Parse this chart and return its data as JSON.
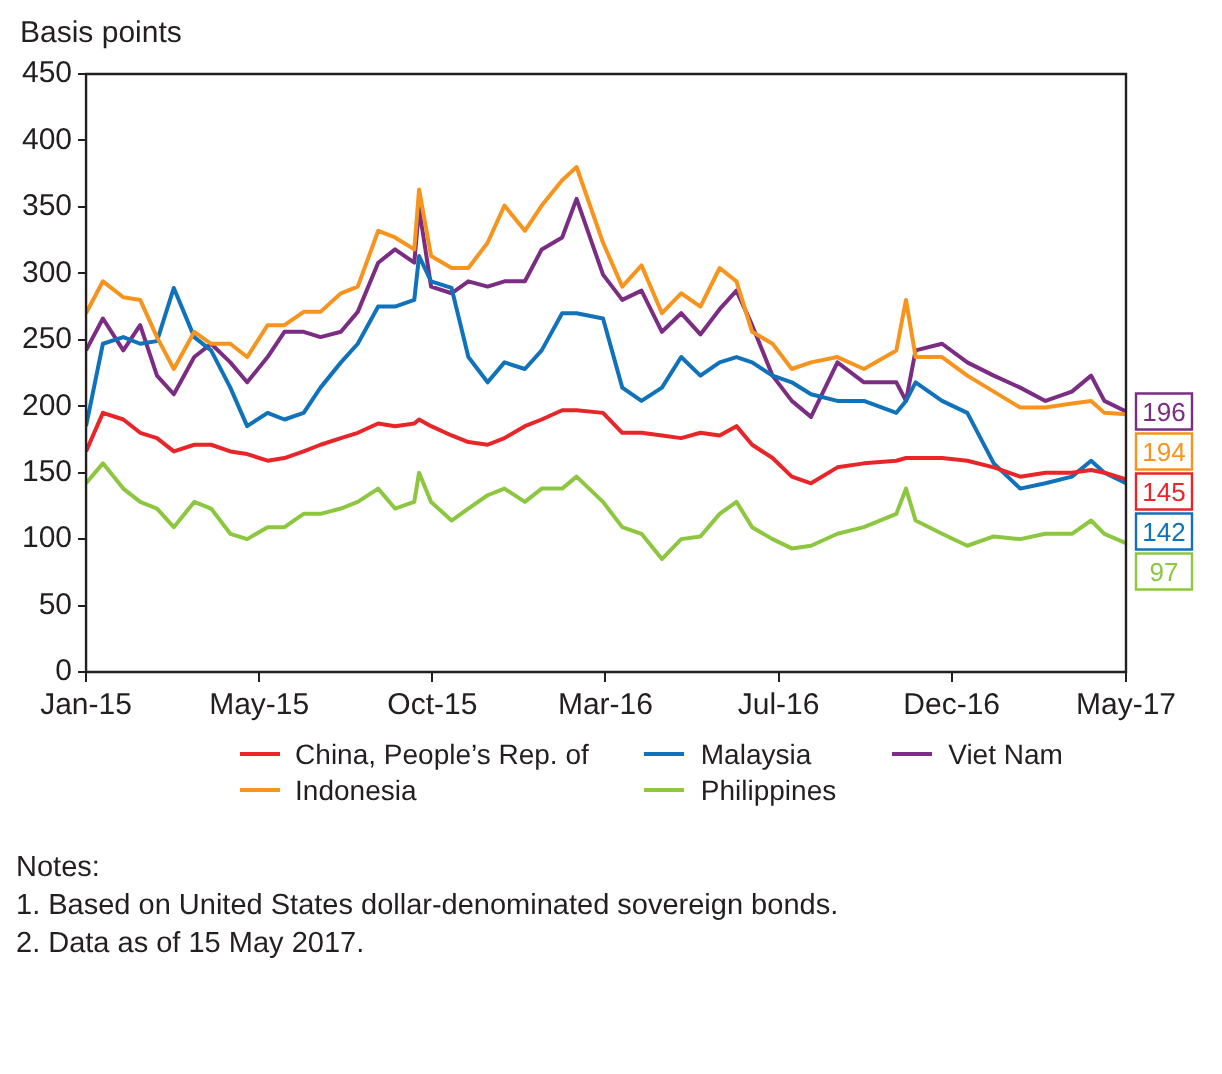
{
  "chart_data": {
    "type": "line",
    "ylabel": "Basis points",
    "x": [
      "2015-01-01",
      "2015-01-15",
      "2015-02-01",
      "2015-02-15",
      "2015-03-01",
      "2015-03-15",
      "2015-04-01",
      "2015-04-15",
      "2015-05-01",
      "2015-05-15",
      "2015-06-01",
      "2015-06-15",
      "2015-07-01",
      "2015-07-15",
      "2015-08-01",
      "2015-08-15",
      "2015-09-01",
      "2015-09-15",
      "2015-10-01",
      "2015-10-05",
      "2015-10-15",
      "2015-11-01",
      "2015-11-15",
      "2015-12-01",
      "2015-12-15",
      "2016-01-01",
      "2016-01-15",
      "2016-02-01",
      "2016-02-13",
      "2016-03-06",
      "2016-03-22",
      "2016-04-07",
      "2016-04-24",
      "2016-05-10",
      "2016-05-26",
      "2016-06-11",
      "2016-06-25",
      "2016-07-08",
      "2016-07-25",
      "2016-08-10",
      "2016-08-26",
      "2016-09-17",
      "2016-10-09",
      "2016-11-05",
      "2016-11-13",
      "2016-11-21",
      "2016-12-13",
      "2017-01-03",
      "2017-01-25",
      "2017-02-16",
      "2017-03-09",
      "2017-03-31",
      "2017-04-16",
      "2017-04-27",
      "2017-05-15"
    ],
    "series": [
      {
        "name": "China, People’s Rep. of",
        "color": "#e8262a",
        "values": [
          166,
          195,
          190,
          180,
          176,
          166,
          171,
          171,
          166,
          164,
          159,
          161,
          166,
          171,
          176,
          180,
          187,
          185,
          187,
          190,
          185,
          178,
          173,
          171,
          176,
          185,
          190,
          197,
          197,
          195,
          180,
          180,
          178,
          176,
          180,
          178,
          185,
          171,
          161,
          147,
          142,
          154,
          157,
          159,
          161,
          161,
          161,
          159,
          154,
          147,
          150,
          150,
          152,
          150,
          145
        ],
        "value_labels": [
          null,
          null,
          null,
          null,
          null,
          null,
          null,
          null,
          null,
          null,
          null,
          null,
          null,
          null,
          null,
          null,
          null,
          null,
          null,
          null,
          null,
          null,
          null,
          null,
          null,
          null,
          null,
          null,
          null,
          null,
          null,
          null,
          null,
          null,
          null,
          null,
          null,
          null,
          null,
          null,
          null,
          null,
          null,
          null,
          null,
          null,
          null,
          null,
          null,
          null,
          null,
          null,
          null,
          null,
          "145"
        ]
      },
      {
        "name": "Indonesia",
        "color": "#f7941d",
        "values": [
          270,
          294,
          282,
          280,
          252,
          228,
          256,
          247,
          247,
          237,
          261,
          261,
          271,
          271,
          285,
          290,
          332,
          327,
          318,
          363,
          313,
          304,
          304,
          323,
          351,
          332,
          351,
          370,
          380,
          323,
          290,
          306,
          270,
          285,
          275,
          304,
          294,
          256,
          247,
          228,
          233,
          237,
          228,
          242,
          280,
          237,
          237,
          223,
          211,
          199,
          199,
          202,
          204,
          195,
          194
        ],
        "value_labels": [
          null,
          null,
          null,
          null,
          null,
          null,
          null,
          null,
          null,
          null,
          null,
          null,
          null,
          null,
          null,
          null,
          null,
          null,
          null,
          null,
          null,
          null,
          null,
          null,
          null,
          null,
          null,
          null,
          null,
          null,
          null,
          null,
          null,
          null,
          null,
          null,
          null,
          null,
          null,
          null,
          null,
          null,
          null,
          null,
          null,
          null,
          null,
          null,
          null,
          null,
          null,
          null,
          null,
          null,
          "194"
        ]
      },
      {
        "name": "Malaysia",
        "color": "#0f72ba",
        "values": [
          185,
          247,
          252,
          247,
          249,
          289,
          252,
          242,
          214,
          185,
          195,
          190,
          195,
          214,
          233,
          247,
          275,
          275,
          280,
          313,
          294,
          289,
          237,
          218,
          233,
          228,
          242,
          270,
          270,
          266,
          214,
          204,
          214,
          237,
          223,
          233,
          237,
          233,
          223,
          218,
          209,
          204,
          204,
          195,
          204,
          218,
          204,
          195,
          157,
          138,
          142,
          147,
          159,
          150,
          142
        ],
        "value_labels": [
          null,
          null,
          null,
          null,
          null,
          null,
          null,
          null,
          null,
          null,
          null,
          null,
          null,
          null,
          null,
          null,
          null,
          null,
          null,
          null,
          null,
          null,
          null,
          null,
          null,
          null,
          null,
          null,
          null,
          null,
          null,
          null,
          null,
          null,
          null,
          null,
          null,
          null,
          null,
          null,
          null,
          null,
          null,
          null,
          null,
          null,
          null,
          null,
          null,
          null,
          null,
          null,
          null,
          null,
          "142"
        ]
      },
      {
        "name": "Philippines",
        "color": "#8dc63f",
        "values": [
          142,
          157,
          138,
          128,
          123,
          109,
          128,
          123,
          104,
          100,
          109,
          109,
          119,
          119,
          123,
          128,
          138,
          123,
          128,
          150,
          128,
          114,
          123,
          133,
          138,
          128,
          138,
          138,
          147,
          128,
          109,
          104,
          85,
          100,
          102,
          119,
          128,
          109,
          100,
          93,
          95,
          104,
          109,
          119,
          138,
          114,
          104,
          95,
          102,
          100,
          104,
          104,
          114,
          104,
          97
        ],
        "value_labels": [
          null,
          null,
          null,
          null,
          null,
          null,
          null,
          null,
          null,
          null,
          null,
          null,
          null,
          null,
          null,
          null,
          null,
          null,
          null,
          null,
          null,
          null,
          null,
          null,
          null,
          null,
          null,
          null,
          null,
          null,
          null,
          null,
          null,
          null,
          null,
          null,
          null,
          null,
          null,
          null,
          null,
          null,
          null,
          null,
          null,
          null,
          null,
          null,
          null,
          null,
          null,
          null,
          null,
          null,
          "97"
        ]
      },
      {
        "name": "Viet Nam",
        "color": "#7b2c83",
        "values": [
          242,
          266,
          242,
          261,
          223,
          209,
          237,
          247,
          233,
          218,
          237,
          256,
          256,
          252,
          256,
          271,
          308,
          318,
          308,
          349,
          290,
          285,
          294,
          290,
          294,
          294,
          318,
          327,
          356,
          299,
          280,
          287,
          256,
          270,
          254,
          273,
          287,
          261,
          223,
          204,
          192,
          233,
          218,
          218,
          204,
          242,
          247,
          233,
          223,
          214,
          204,
          211,
          223,
          204,
          196
        ],
        "value_labels": [
          null,
          null,
          null,
          null,
          null,
          null,
          null,
          null,
          null,
          null,
          null,
          null,
          null,
          null,
          null,
          null,
          null,
          null,
          null,
          null,
          null,
          null,
          null,
          null,
          null,
          null,
          null,
          null,
          null,
          null,
          null,
          null,
          null,
          null,
          null,
          null,
          null,
          null,
          null,
          null,
          null,
          null,
          null,
          null,
          null,
          null,
          null,
          null,
          null,
          null,
          null,
          null,
          null,
          null,
          "196"
        ]
      }
    ],
    "xlim": [
      "2015-01-01",
      "2017-05-15"
    ],
    "xticks": [
      {
        "value": "2015-01-01",
        "label": "Jan-15"
      },
      {
        "value": "2015-05-25",
        "label": "May-15"
      },
      {
        "value": "2015-10-16",
        "label": "Oct-15"
      },
      {
        "value": "2016-03-08",
        "label": "Mar-16"
      },
      {
        "value": "2016-07-30",
        "label": "Jul-16"
      },
      {
        "value": "2016-12-21",
        "label": "Dec-16"
      },
      {
        "value": "2017-05-15",
        "label": "May-17"
      }
    ],
    "ylim": [
      0,
      450
    ],
    "yticks": [
      0,
      50,
      100,
      150,
      200,
      250,
      300,
      350,
      400,
      450
    ],
    "grid": false,
    "legend": "bottom",
    "marker": "none",
    "line_style": "solid",
    "annotations": [
      "Notes:",
      "1. Based on United States dollar-denominated sovereign bonds.",
      "2. Data as of 15 May 2017."
    ]
  }
}
